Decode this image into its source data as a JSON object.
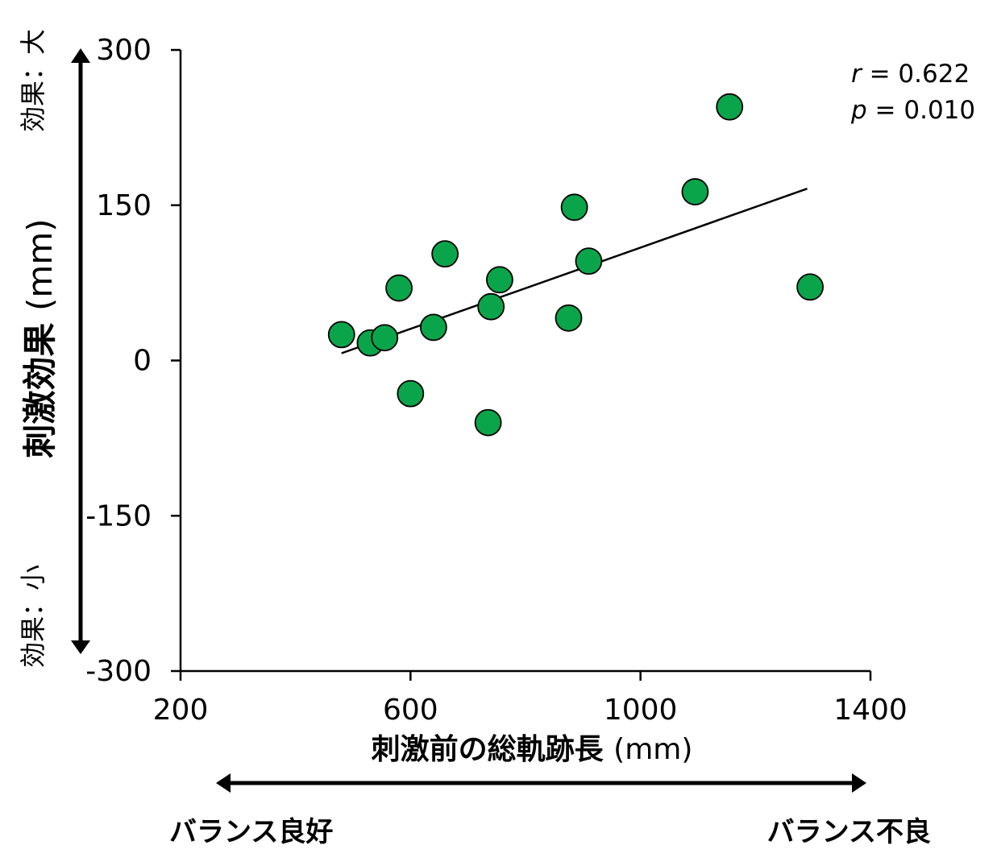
{
  "chart_data": {
    "type": "scatter",
    "xlabel": "刺激前の総軌跡長",
    "xlabel_unit": "(mm)",
    "ylabel": "刺激効果",
    "ylabel_unit": "(mm)",
    "xlim": [
      200,
      1400
    ],
    "ylim": [
      -300,
      300
    ],
    "x_ticks": [
      200,
      600,
      1000,
      1400
    ],
    "y_ticks": [
      300,
      150,
      0,
      -150,
      -300
    ],
    "x_tick_labels": [
      "200",
      "600",
      "1000",
      "1400"
    ],
    "y_tick_labels": [
      "300",
      "150",
      "0",
      "-150",
      "-300"
    ],
    "points": [
      {
        "x": 480,
        "y": 25
      },
      {
        "x": 530,
        "y": 17
      },
      {
        "x": 555,
        "y": 22
      },
      {
        "x": 580,
        "y": 70
      },
      {
        "x": 600,
        "y": -32
      },
      {
        "x": 640,
        "y": 32
      },
      {
        "x": 660,
        "y": 103
      },
      {
        "x": 735,
        "y": -60
      },
      {
        "x": 740,
        "y": 52
      },
      {
        "x": 755,
        "y": 78
      },
      {
        "x": 875,
        "y": 41
      },
      {
        "x": 885,
        "y": 148
      },
      {
        "x": 910,
        "y": 96
      },
      {
        "x": 1095,
        "y": 163
      },
      {
        "x": 1155,
        "y": 245
      },
      {
        "x": 1295,
        "y": 71
      }
    ],
    "trendline": {
      "x": [
        480,
        1290
      ],
      "y": [
        7,
        166
      ]
    },
    "stats": {
      "r_symbol": "r",
      "r_text": " = 0.622",
      "p_symbol": "p",
      "p_text": " = 0.010"
    },
    "grid": false,
    "marker_color": "#0aa54a",
    "marker_edge": "#000000"
  },
  "annotations": {
    "y_top": "効果：大",
    "y_bottom": "効果：小",
    "x_left": "バランス良好",
    "x_right": "バランス不良"
  }
}
